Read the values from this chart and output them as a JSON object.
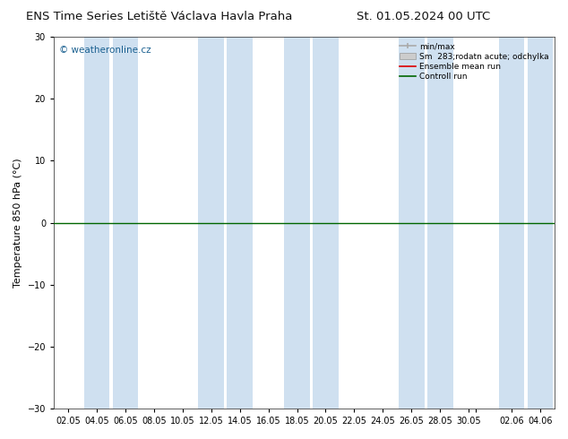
{
  "title_left": "ENS Time Series Letiště Václava Havla Praha",
  "title_right": "St. 01.05.2024 00 UTC",
  "ylabel": "Temperature 850 hPa (°C)",
  "ylim": [
    -30,
    30
  ],
  "yticks": [
    -30,
    -20,
    -10,
    0,
    10,
    20,
    30
  ],
  "x_tick_labels": [
    "02.05",
    "04.05",
    "06.05",
    "08.05",
    "10.05",
    "12.05",
    "14.05",
    "16.05",
    "18.05",
    "20.05",
    "22.05",
    "24.05",
    "26.05",
    "28.05",
    "30.05",
    "",
    "02.06",
    "04.06"
  ],
  "watermark": "© weatheronline.cz",
  "background_color": "#ffffff",
  "plot_bg_color": "#ffffff",
  "stripe_color": "#cfe0f0",
  "zero_line_color": "#006600",
  "title_fontsize": 9.5,
  "tick_fontsize": 7,
  "ylabel_fontsize": 8,
  "watermark_fontsize": 7.5,
  "watermark_color": "#1a6090",
  "stripe_centers": [
    1,
    2,
    5,
    6,
    9,
    10,
    13,
    14,
    17,
    18,
    21,
    22,
    25,
    26,
    29,
    30,
    33,
    34
  ],
  "legend_minmax_color": "#aaaaaa",
  "legend_sm_color": "#cccccc",
  "legend_ensemble_color": "#dd0000",
  "legend_control_color": "#006600"
}
